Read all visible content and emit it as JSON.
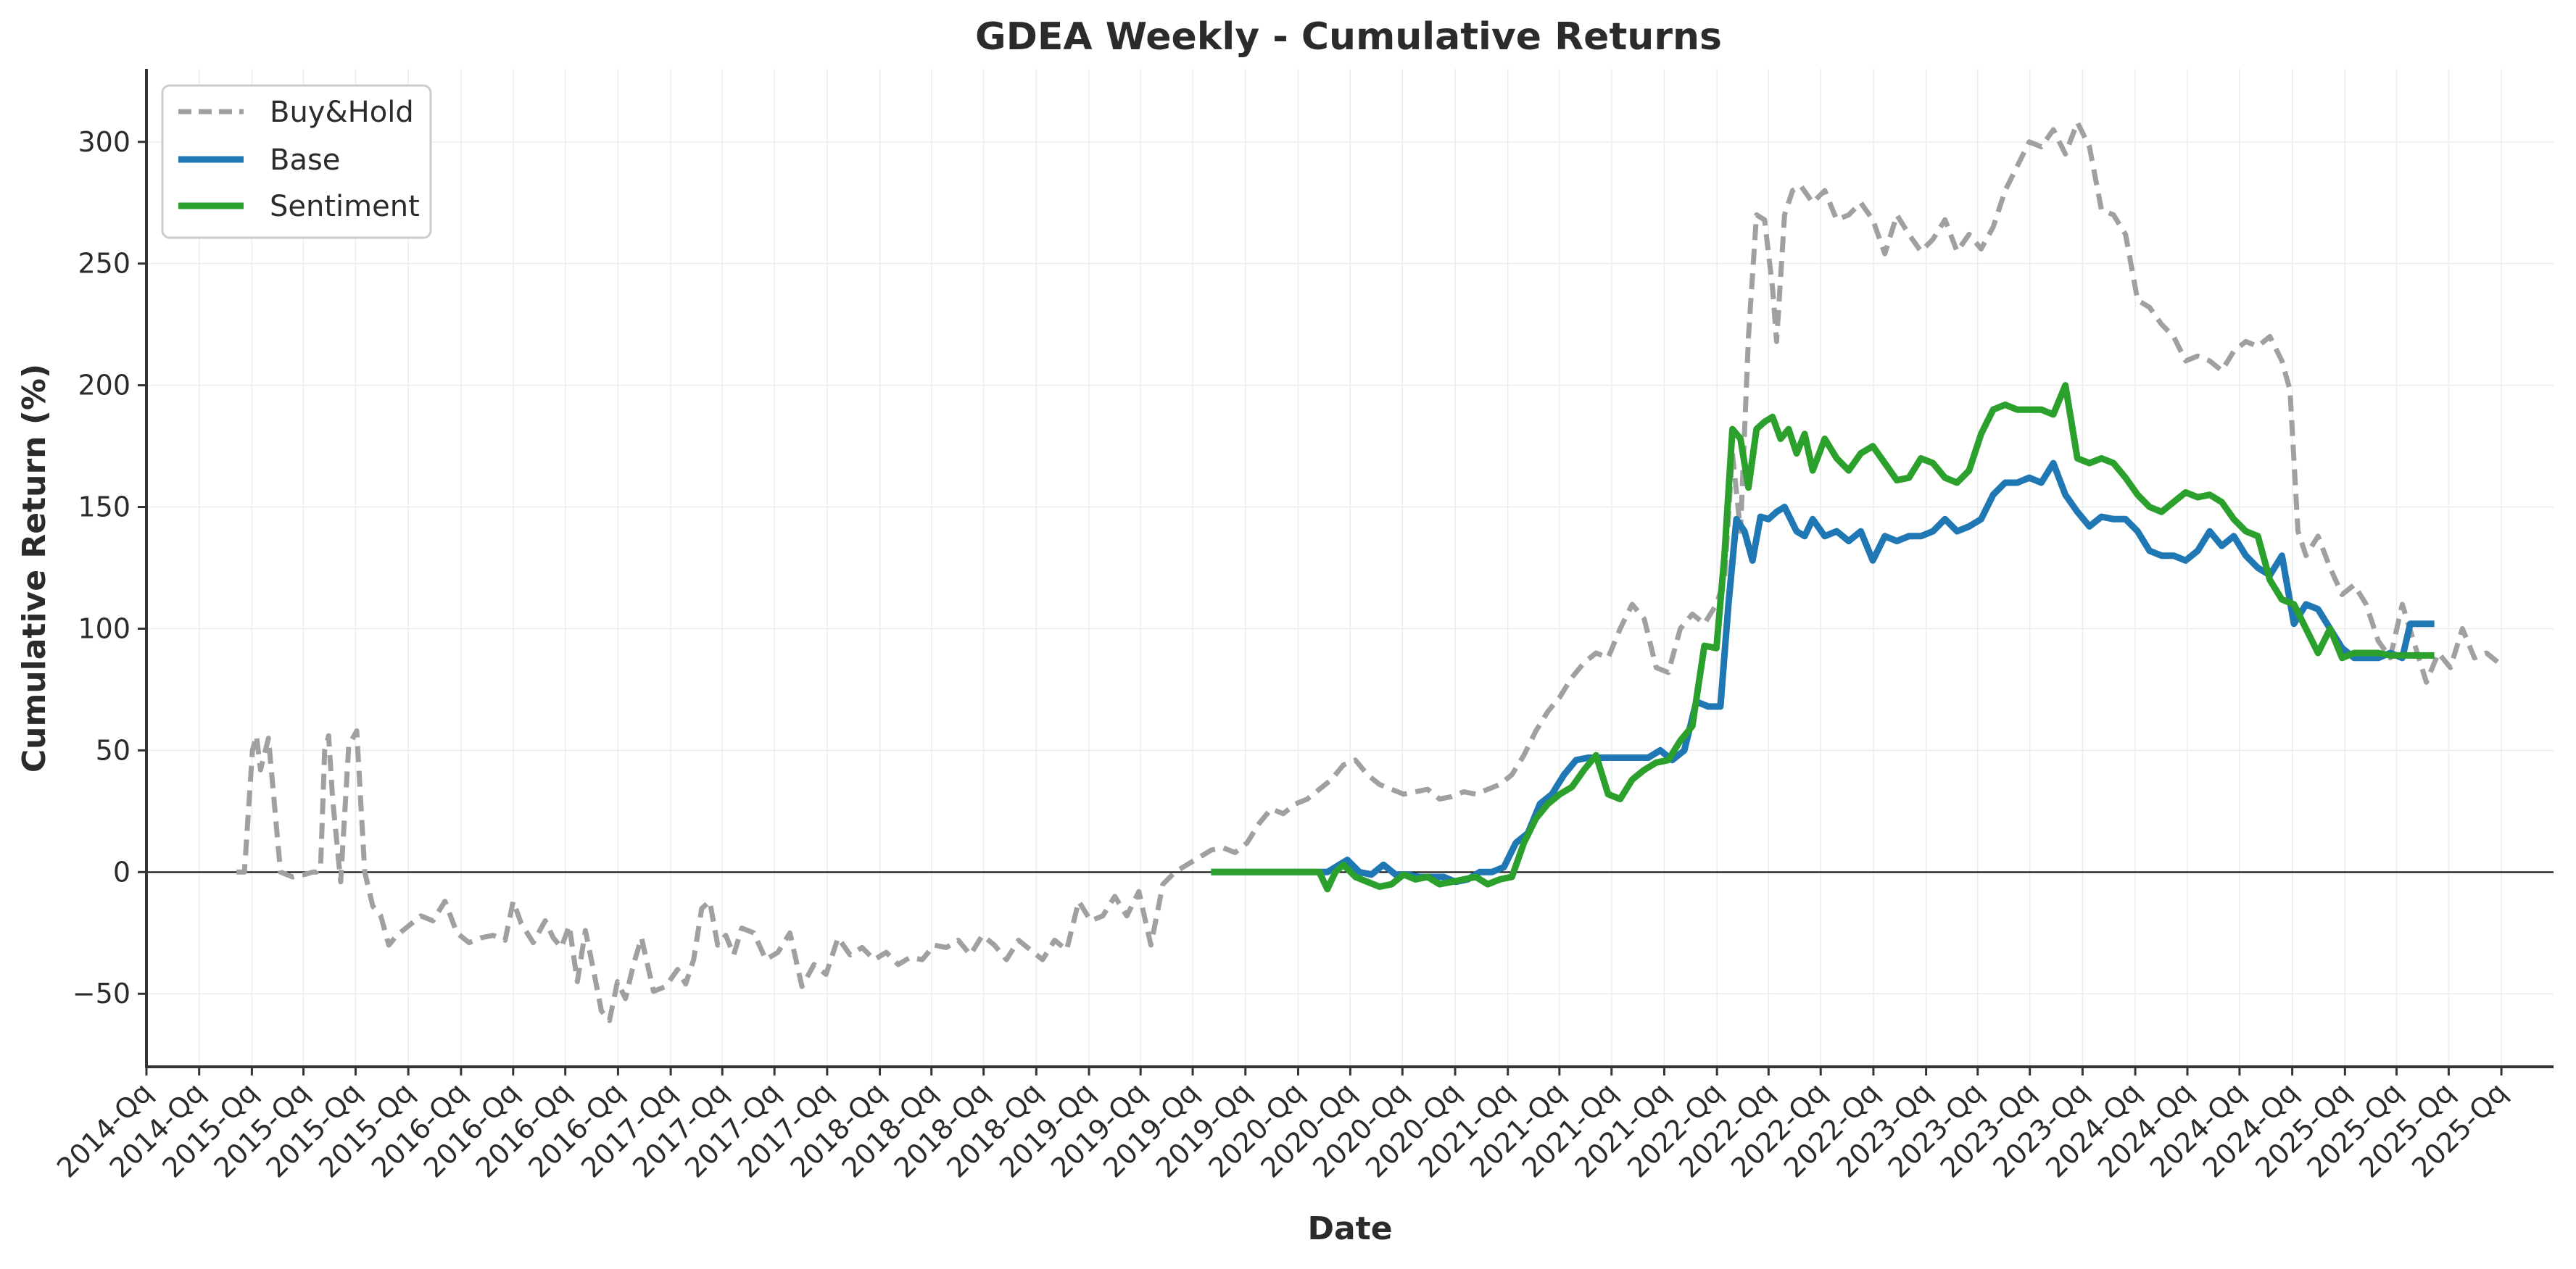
{
  "chart_data": {
    "type": "line",
    "title": "GDEA Weekly - Cumulative Returns",
    "xlabel": "Date",
    "ylabel": "Cumulative Return (%)",
    "xlim": [
      "2014-07-01",
      "2025-12-31"
    ],
    "ylim": [
      -80,
      330
    ],
    "yticks": [
      -50,
      0,
      50,
      100,
      150,
      200,
      250,
      300
    ],
    "ytick_labels": [
      "−50",
      "0",
      "50",
      "100",
      "150",
      "200",
      "250",
      "300"
    ],
    "xtick_labels": [
      "2014-Qq",
      "2014-Qq",
      "2015-Qq",
      "2015-Qq",
      "2015-Qq",
      "2015-Qq",
      "2016-Qq",
      "2016-Qq",
      "2016-Qq",
      "2016-Qq",
      "2017-Qq",
      "2017-Qq",
      "2017-Qq",
      "2017-Qq",
      "2018-Qq",
      "2018-Qq",
      "2018-Qq",
      "2018-Qq",
      "2019-Qq",
      "2019-Qq",
      "2019-Qq",
      "2019-Qq",
      "2020-Qq",
      "2020-Qq",
      "2020-Qq",
      "2020-Qq",
      "2021-Qq",
      "2021-Qq",
      "2021-Qq",
      "2021-Qq",
      "2022-Qq",
      "2022-Qq",
      "2022-Qq",
      "2022-Qq",
      "2023-Qq",
      "2023-Qq",
      "2023-Qq",
      "2023-Qq",
      "2024-Qq",
      "2024-Qq",
      "2024-Qq",
      "2024-Qq",
      "2025-Qq",
      "2025-Qq",
      "2025-Qq",
      "2025-Qq"
    ],
    "xtick_dates": [
      "2014-07-01",
      "2014-10-01",
      "2015-01-01",
      "2015-04-01",
      "2015-07-01",
      "2015-10-01",
      "2016-01-01",
      "2016-04-01",
      "2016-07-01",
      "2016-10-01",
      "2017-01-01",
      "2017-04-01",
      "2017-07-01",
      "2017-10-01",
      "2018-01-01",
      "2018-04-01",
      "2018-07-01",
      "2018-10-01",
      "2019-01-01",
      "2019-04-01",
      "2019-07-01",
      "2019-10-01",
      "2020-01-01",
      "2020-04-01",
      "2020-07-01",
      "2020-10-01",
      "2021-01-01",
      "2021-04-01",
      "2021-07-01",
      "2021-10-01",
      "2022-01-01",
      "2022-04-01",
      "2022-07-01",
      "2022-10-01",
      "2023-01-01",
      "2023-04-01",
      "2023-07-01",
      "2023-10-01",
      "2024-01-01",
      "2024-04-01",
      "2024-07-01",
      "2024-10-01",
      "2025-01-01",
      "2025-04-01",
      "2025-07-01",
      "2025-10-01"
    ],
    "grid": true,
    "legend_position": "top-left",
    "zero_line": true,
    "series": [
      {
        "name": "Buy&Hold",
        "color": "#a0a0a0",
        "style": "dashed",
        "x": [
          "2014-12-05",
          "2014-12-19",
          "2015-01-02",
          "2015-01-09",
          "2015-01-16",
          "2015-01-30",
          "2015-02-20",
          "2015-03-13",
          "2015-03-27",
          "2015-04-03",
          "2015-04-17",
          "2015-04-24",
          "2015-05-01",
          "2015-05-08",
          "2015-05-15",
          "2015-05-22",
          "2015-06-05",
          "2015-06-19",
          "2015-07-03",
          "2015-07-17",
          "2015-07-31",
          "2015-08-14",
          "2015-08-28",
          "2015-09-11",
          "2015-10-02",
          "2015-10-23",
          "2015-11-13",
          "2015-12-04",
          "2015-12-25",
          "2016-01-15",
          "2016-02-05",
          "2016-02-26",
          "2016-03-18",
          "2016-04-01",
          "2016-04-15",
          "2016-05-06",
          "2016-05-27",
          "2016-06-10",
          "2016-06-24",
          "2016-07-08",
          "2016-07-22",
          "2016-08-05",
          "2016-08-19",
          "2016-09-02",
          "2016-09-16",
          "2016-09-30",
          "2016-10-14",
          "2016-10-28",
          "2016-11-11",
          "2016-12-02",
          "2016-12-23",
          "2017-01-13",
          "2017-01-27",
          "2017-02-10",
          "2017-02-24",
          "2017-03-10",
          "2017-03-24",
          "2017-04-07",
          "2017-04-21",
          "2017-05-05",
          "2017-05-26",
          "2017-06-16",
          "2017-07-07",
          "2017-07-28",
          "2017-08-18",
          "2017-09-08",
          "2017-09-29",
          "2017-10-20",
          "2017-11-10",
          "2017-12-01",
          "2017-12-22",
          "2018-01-12",
          "2018-02-02",
          "2018-02-23",
          "2018-03-16",
          "2018-04-06",
          "2018-04-27",
          "2018-05-18",
          "2018-06-08",
          "2018-06-29",
          "2018-07-20",
          "2018-08-10",
          "2018-08-31",
          "2018-09-21",
          "2018-10-12",
          "2018-11-02",
          "2018-11-23",
          "2018-12-14",
          "2019-01-04",
          "2019-01-25",
          "2019-02-15",
          "2019-03-08",
          "2019-03-29",
          "2019-04-19",
          "2019-05-10",
          "2019-05-31",
          "2019-06-21",
          "2019-07-12",
          "2019-08-02",
          "2019-08-23",
          "2019-09-13",
          "2019-10-04",
          "2019-10-25",
          "2019-11-15",
          "2019-12-06",
          "2019-12-27",
          "2020-01-17",
          "2020-02-07",
          "2020-02-28",
          "2020-03-20",
          "2020-04-10",
          "2020-05-01",
          "2020-05-22",
          "2020-06-12",
          "2020-07-03",
          "2020-07-24",
          "2020-08-14",
          "2020-09-04",
          "2020-09-25",
          "2020-10-16",
          "2020-11-06",
          "2020-11-27",
          "2020-12-18",
          "2021-01-08",
          "2021-01-29",
          "2021-02-19",
          "2021-03-12",
          "2021-04-02",
          "2021-04-23",
          "2021-05-14",
          "2021-06-04",
          "2021-06-25",
          "2021-07-16",
          "2021-08-06",
          "2021-08-27",
          "2021-09-17",
          "2021-10-08",
          "2021-10-29",
          "2021-11-19",
          "2021-12-10",
          "2021-12-31",
          "2022-01-14",
          "2022-01-28",
          "2022-02-11",
          "2022-02-25",
          "2022-03-11",
          "2022-03-25",
          "2022-04-08",
          "2022-04-15",
          "2022-04-29",
          "2022-05-13",
          "2022-05-27",
          "2022-06-17",
          "2022-07-08",
          "2022-07-29",
          "2022-08-19",
          "2022-09-09",
          "2022-09-30",
          "2022-10-21",
          "2022-11-11",
          "2022-12-02",
          "2022-12-23",
          "2023-01-13",
          "2023-02-03",
          "2023-02-24",
          "2023-03-17",
          "2023-04-07",
          "2023-04-28",
          "2023-05-19",
          "2023-06-09",
          "2023-06-30",
          "2023-07-21",
          "2023-08-11",
          "2023-09-01",
          "2023-09-22",
          "2023-10-13",
          "2023-11-03",
          "2023-11-24",
          "2023-12-15",
          "2024-01-05",
          "2024-01-26",
          "2024-02-16",
          "2024-03-08",
          "2024-03-29",
          "2024-04-19",
          "2024-05-10",
          "2024-05-31",
          "2024-06-21",
          "2024-07-12",
          "2024-08-02",
          "2024-08-23",
          "2024-09-13",
          "2024-09-27",
          "2024-10-11",
          "2024-10-25",
          "2024-11-15",
          "2024-12-06",
          "2024-12-27",
          "2025-01-17",
          "2025-02-07",
          "2025-02-28",
          "2025-03-21",
          "2025-04-11",
          "2025-05-02",
          "2025-05-23",
          "2025-06-13",
          "2025-07-04",
          "2025-07-25",
          "2025-08-15",
          "2025-09-05",
          "2025-09-26"
        ],
        "y": [
          0,
          0,
          50,
          56,
          42,
          55,
          0,
          -2,
          -1,
          -1,
          0,
          0,
          2,
          50,
          56,
          30,
          -4,
          52,
          58,
          0,
          -14,
          -18,
          -30,
          -26,
          -22,
          -18,
          -20,
          -12,
          -25,
          -29,
          -27,
          -26,
          -28,
          -12,
          -21,
          -29,
          -20,
          -27,
          -31,
          -22,
          -45,
          -24,
          -40,
          -57,
          -61,
          -45,
          -52,
          -38,
          -27,
          -49,
          -47,
          -40,
          -46,
          -36,
          -15,
          -12,
          -30,
          -26,
          -34,
          -23,
          -25,
          -36,
          -33,
          -25,
          -47,
          -38,
          -42,
          -27,
          -34,
          -31,
          -36,
          -33,
          -38,
          -35,
          -36,
          -30,
          -31,
          -28,
          -34,
          -26,
          -30,
          -36,
          -28,
          -32,
          -36,
          -28,
          -32,
          -12,
          -20,
          -18,
          -10,
          -18,
          -8,
          -30,
          -5,
          0,
          3,
          6,
          9,
          10,
          8,
          12,
          20,
          26,
          24,
          28,
          30,
          34,
          38,
          44,
          46,
          40,
          36,
          34,
          32,
          33,
          34,
          30,
          31,
          33,
          32,
          34,
          36,
          40,
          48,
          58,
          66,
          72,
          80,
          86,
          90,
          88,
          100,
          110,
          104,
          84,
          82,
          100,
          106,
          102,
          110,
          120,
          172,
          140,
          220,
          270,
          268,
          240,
          218,
          270,
          280,
          282,
          275,
          280,
          268,
          270,
          275,
          268,
          254,
          270,
          262,
          255,
          260,
          268,
          255,
          262,
          256,
          265,
          280,
          290,
          300,
          298,
          305,
          295,
          308,
          298,
          272,
          270,
          262,
          235,
          232,
          225,
          220,
          210,
          212,
          210,
          206,
          214,
          218,
          216,
          220,
          210,
          198,
          140,
          130,
          138,
          125,
          114,
          118,
          110,
          95,
          88,
          110,
          94,
          78,
          90,
          84,
          100,
          88,
          90,
          86
        ]
      },
      {
        "name": "Base",
        "color": "#1f77b4",
        "style": "solid",
        "x": [
          "2019-08-02",
          "2020-02-21",
          "2020-03-06",
          "2020-03-27",
          "2020-04-17",
          "2020-05-08",
          "2020-05-29",
          "2020-06-19",
          "2020-07-10",
          "2020-07-31",
          "2020-08-21",
          "2020-09-11",
          "2020-10-02",
          "2020-10-23",
          "2020-11-13",
          "2020-12-04",
          "2020-12-25",
          "2021-01-15",
          "2021-02-05",
          "2021-02-26",
          "2021-03-19",
          "2021-04-09",
          "2021-04-30",
          "2021-05-21",
          "2021-06-11",
          "2021-07-02",
          "2021-07-23",
          "2021-08-13",
          "2021-09-03",
          "2021-09-24",
          "2021-10-15",
          "2021-11-05",
          "2021-11-26",
          "2021-12-17",
          "2022-01-07",
          "2022-01-21",
          "2022-02-04",
          "2022-02-18",
          "2022-03-04",
          "2022-03-18",
          "2022-04-01",
          "2022-04-15",
          "2022-04-29",
          "2022-05-20",
          "2022-06-03",
          "2022-06-17",
          "2022-07-08",
          "2022-07-29",
          "2022-08-19",
          "2022-09-09",
          "2022-09-30",
          "2022-10-21",
          "2022-11-11",
          "2022-12-02",
          "2022-12-23",
          "2023-01-13",
          "2023-02-03",
          "2023-02-24",
          "2023-03-17",
          "2023-04-07",
          "2023-04-28",
          "2023-05-19",
          "2023-06-09",
          "2023-06-30",
          "2023-07-21",
          "2023-08-11",
          "2023-09-01",
          "2023-09-22",
          "2023-10-13",
          "2023-11-03",
          "2023-11-24",
          "2023-12-15",
          "2024-01-05",
          "2024-01-26",
          "2024-02-16",
          "2024-03-08",
          "2024-03-29",
          "2024-04-19",
          "2024-05-10",
          "2024-05-31",
          "2024-06-21",
          "2024-07-12",
          "2024-08-02",
          "2024-08-23",
          "2024-09-13",
          "2024-10-04",
          "2024-10-25",
          "2024-11-15",
          "2024-12-06",
          "2024-12-27",
          "2025-01-17",
          "2025-02-07",
          "2025-02-28",
          "2025-03-21",
          "2025-04-11",
          "2025-04-25",
          "2025-05-16",
          "2025-06-06"
        ],
        "y": [
          0,
          0,
          2,
          5,
          0,
          -1,
          3,
          -1,
          -1,
          -2,
          -2,
          -2,
          -4,
          -3,
          0,
          0,
          2,
          12,
          16,
          28,
          32,
          40,
          46,
          47,
          47,
          47,
          47,
          47,
          47,
          50,
          46,
          50,
          70,
          68,
          68,
          110,
          145,
          140,
          128,
          146,
          145,
          148,
          150,
          140,
          138,
          145,
          138,
          140,
          136,
          140,
          128,
          138,
          136,
          138,
          138,
          140,
          145,
          140,
          142,
          145,
          155,
          160,
          160,
          162,
          160,
          168,
          155,
          148,
          142,
          146,
          145,
          145,
          140,
          132,
          130,
          130,
          128,
          132,
          140,
          134,
          138,
          130,
          125,
          122,
          130,
          102,
          110,
          108,
          100,
          92,
          88,
          88,
          88,
          90,
          88,
          102,
          102,
          102
        ]
      },
      {
        "name": "Sentiment",
        "color": "#2ca02c",
        "style": "solid",
        "x": [
          "2019-08-02",
          "2020-02-07",
          "2020-02-21",
          "2020-03-06",
          "2020-03-20",
          "2020-04-10",
          "2020-05-01",
          "2020-05-22",
          "2020-06-12",
          "2020-07-03",
          "2020-07-24",
          "2020-08-14",
          "2020-09-04",
          "2020-09-25",
          "2020-10-16",
          "2020-11-06",
          "2020-11-27",
          "2020-12-18",
          "2021-01-08",
          "2021-01-29",
          "2021-02-19",
          "2021-03-12",
          "2021-04-02",
          "2021-04-23",
          "2021-05-14",
          "2021-06-04",
          "2021-06-25",
          "2021-07-16",
          "2021-08-06",
          "2021-08-27",
          "2021-09-17",
          "2021-10-08",
          "2021-10-29",
          "2021-11-19",
          "2021-12-10",
          "2021-12-31",
          "2022-01-14",
          "2022-01-28",
          "2022-02-11",
          "2022-02-25",
          "2022-03-11",
          "2022-03-25",
          "2022-04-08",
          "2022-04-22",
          "2022-05-06",
          "2022-05-20",
          "2022-06-03",
          "2022-06-17",
          "2022-07-08",
          "2022-07-29",
          "2022-08-19",
          "2022-09-09",
          "2022-09-30",
          "2022-10-21",
          "2022-11-11",
          "2022-12-02",
          "2022-12-23",
          "2023-01-13",
          "2023-02-03",
          "2023-02-24",
          "2023-03-17",
          "2023-04-07",
          "2023-04-28",
          "2023-05-19",
          "2023-06-09",
          "2023-06-30",
          "2023-07-21",
          "2023-08-11",
          "2023-09-01",
          "2023-09-22",
          "2023-10-13",
          "2023-11-03",
          "2023-11-24",
          "2023-12-15",
          "2024-01-05",
          "2024-01-26",
          "2024-02-16",
          "2024-03-08",
          "2024-03-29",
          "2024-04-19",
          "2024-05-10",
          "2024-05-31",
          "2024-06-21",
          "2024-07-12",
          "2024-08-02",
          "2024-08-23",
          "2024-09-13",
          "2024-10-04",
          "2024-10-25",
          "2024-11-15",
          "2024-12-06",
          "2024-12-27",
          "2025-01-17",
          "2025-02-07",
          "2025-02-28",
          "2025-03-21",
          "2025-04-11",
          "2025-05-02",
          "2025-05-23",
          "2025-06-06"
        ],
        "y": [
          0,
          0,
          -7,
          0,
          3,
          -2,
          -4,
          -6,
          -5,
          -1,
          -3,
          -2,
          -5,
          -4,
          -3,
          -2,
          -5,
          -3,
          -2,
          12,
          22,
          28,
          32,
          35,
          42,
          48,
          32,
          30,
          38,
          42,
          45,
          46,
          54,
          60,
          93,
          92,
          130,
          182,
          178,
          158,
          182,
          185,
          187,
          178,
          182,
          172,
          180,
          165,
          178,
          170,
          165,
          172,
          175,
          168,
          161,
          162,
          170,
          168,
          162,
          160,
          165,
          180,
          190,
          192,
          190,
          190,
          190,
          188,
          200,
          170,
          168,
          170,
          168,
          162,
          155,
          150,
          148,
          152,
          156,
          154,
          155,
          152,
          145,
          140,
          138,
          120,
          112,
          110,
          100,
          90,
          100,
          88,
          90,
          90,
          90,
          89,
          89,
          89,
          89,
          89
        ]
      }
    ]
  }
}
